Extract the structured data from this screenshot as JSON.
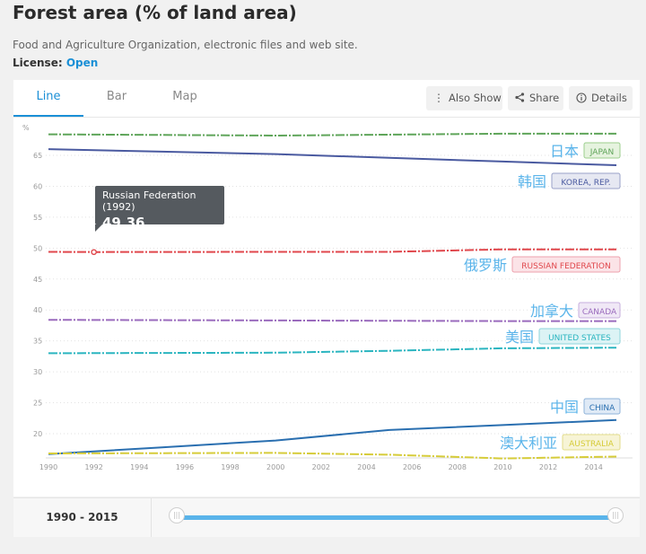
{
  "header": {
    "title": "Forest area (% of land area)",
    "source": "Food and Agriculture Organization, electronic files and web site.",
    "license_label": "License:",
    "license_value": "Open"
  },
  "tabs": [
    {
      "label": "Line",
      "active": true
    },
    {
      "label": "Bar",
      "active": false
    },
    {
      "label": "Map",
      "active": false
    }
  ],
  "toolbar": {
    "also_show": "Also Show",
    "share": "Share",
    "details": "Details"
  },
  "footer": {
    "range_label": "1990 - 2015"
  },
  "tooltip": {
    "name": "Russian Federation (1992)",
    "value": "49.36"
  },
  "chart_data": {
    "type": "line",
    "ylabel": "%",
    "ylim": [
      16,
      70
    ],
    "yticks": [
      20,
      25,
      30,
      35,
      40,
      45,
      50,
      55,
      60,
      65
    ],
    "xticks": [
      1990,
      1992,
      1994,
      1996,
      1998,
      2000,
      2002,
      2004,
      2006,
      2008,
      2010,
      2012,
      2014
    ],
    "grid": true,
    "series": [
      {
        "name": "日本",
        "tag": "JAPAN",
        "color": "#5fa55a",
        "tag_bg": "#e6f3df",
        "tag_border": "#9ccf8e",
        "x": [
          1990,
          2000,
          2010,
          2015
        ],
        "values": [
          68.4,
          68.2,
          68.5,
          68.5
        ]
      },
      {
        "name": "韩国",
        "tag": "KOREA, REP.",
        "color": "#4a5aa0",
        "tag_bg": "#e6e8f2",
        "tag_border": "#9aa2c8",
        "x": [
          1990,
          1995,
          2000,
          2005,
          2010,
          2015
        ],
        "values": [
          66.0,
          65.6,
          65.2,
          64.6,
          64.0,
          63.4
        ]
      },
      {
        "name": "俄罗斯",
        "tag": "RUSSIAN FEDERATION",
        "color": "#e0474c",
        "tag_bg": "#fbe3e7",
        "tag_border": "#eda0ac",
        "x": [
          1990,
          1992,
          2000,
          2005,
          2010,
          2015
        ],
        "values": [
          49.4,
          49.36,
          49.4,
          49.4,
          49.8,
          49.8
        ]
      },
      {
        "name": "加拿大",
        "tag": "CANADA",
        "color": "#9a6bbd",
        "tag_bg": "#f0e8f6",
        "tag_border": "#c7aedd",
        "x": [
          1990,
          2000,
          2010,
          2015
        ],
        "values": [
          38.4,
          38.3,
          38.2,
          38.2
        ]
      },
      {
        "name": "美国",
        "tag": "UNITED STATES",
        "color": "#2bb5c0",
        "tag_bg": "#dcf3f5",
        "tag_border": "#8fd6dc",
        "x": [
          1990,
          2000,
          2005,
          2010,
          2015
        ],
        "values": [
          33.0,
          33.1,
          33.4,
          33.8,
          33.9
        ]
      },
      {
        "name": "中国",
        "tag": "CHINA",
        "color": "#2a6fb0",
        "tag_bg": "#dfeaf6",
        "tag_border": "#8fb3d9",
        "x": [
          1990,
          1995,
          2000,
          2005,
          2010,
          2015
        ],
        "values": [
          16.7,
          17.8,
          18.9,
          20.6,
          21.4,
          22.2
        ]
      },
      {
        "name": "澳大利亚",
        "tag": "AUSTRALIA",
        "color": "#d6cc3a",
        "tag_bg": "#f7f4d6",
        "tag_border": "#e3dc8a",
        "x": [
          1990,
          2000,
          2005,
          2010,
          2015
        ],
        "values": [
          16.8,
          16.9,
          16.6,
          16.0,
          16.3
        ]
      }
    ]
  }
}
